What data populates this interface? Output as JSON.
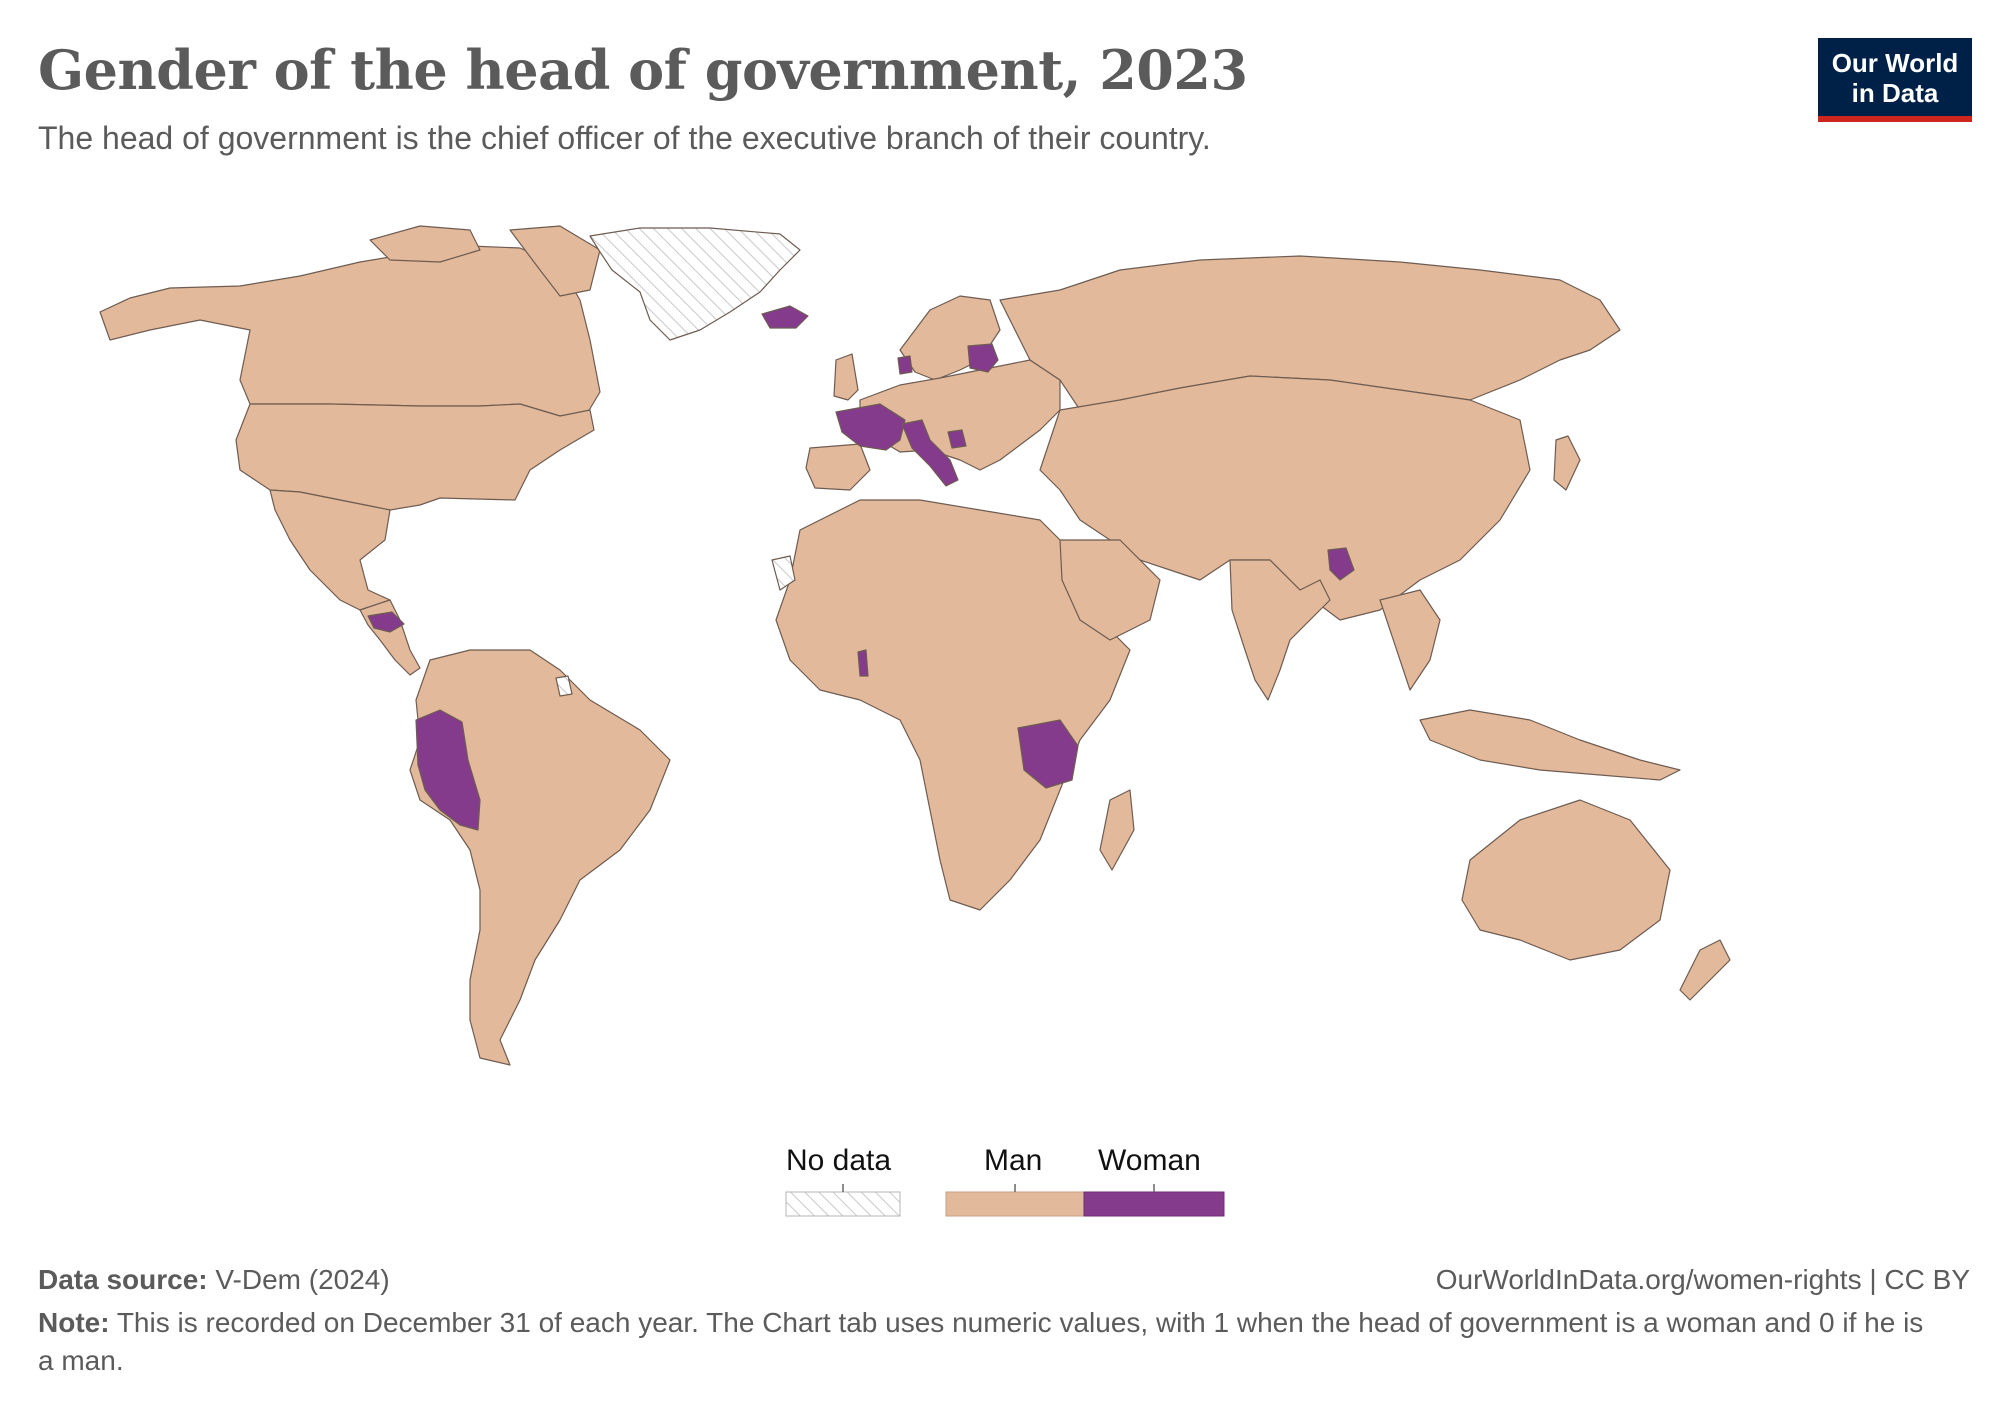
{
  "header": {
    "title": "Gender of the head of government, 2023",
    "subtitle": "The head of government is the chief officer of the executive branch of their country."
  },
  "logo": {
    "line1": "Our World",
    "line2": "in Data",
    "bg_color": "#002147",
    "accent_color": "#ce261e"
  },
  "legend": {
    "no_data_label": "No data",
    "categories": [
      {
        "label": "Man",
        "color": "#e2b99a"
      },
      {
        "label": "Woman",
        "color": "#853b8c"
      }
    ]
  },
  "map_data": {
    "type": "choropleth",
    "year": 2023,
    "woman_led": [
      "Iceland",
      "Denmark",
      "Lithuania",
      "France",
      "Italy",
      "Bosnia and Herzegovina",
      "Honduras",
      "Peru",
      "Togo",
      "Tanzania",
      "Bangladesh"
    ],
    "no_data": [
      "Greenland",
      "Western Sahara",
      "French Guiana"
    ],
    "default_category": "Man"
  },
  "footer": {
    "source_label": "Data source:",
    "source_value": "V-Dem (2024)",
    "url": "OurWorldInData.org/women-rights | CC BY",
    "note_label": "Note:",
    "note_text": "This is recorded on December 31 of each year. The Chart tab uses numeric values, with 1 when the head of government is a woman and 0 if he is a man."
  }
}
